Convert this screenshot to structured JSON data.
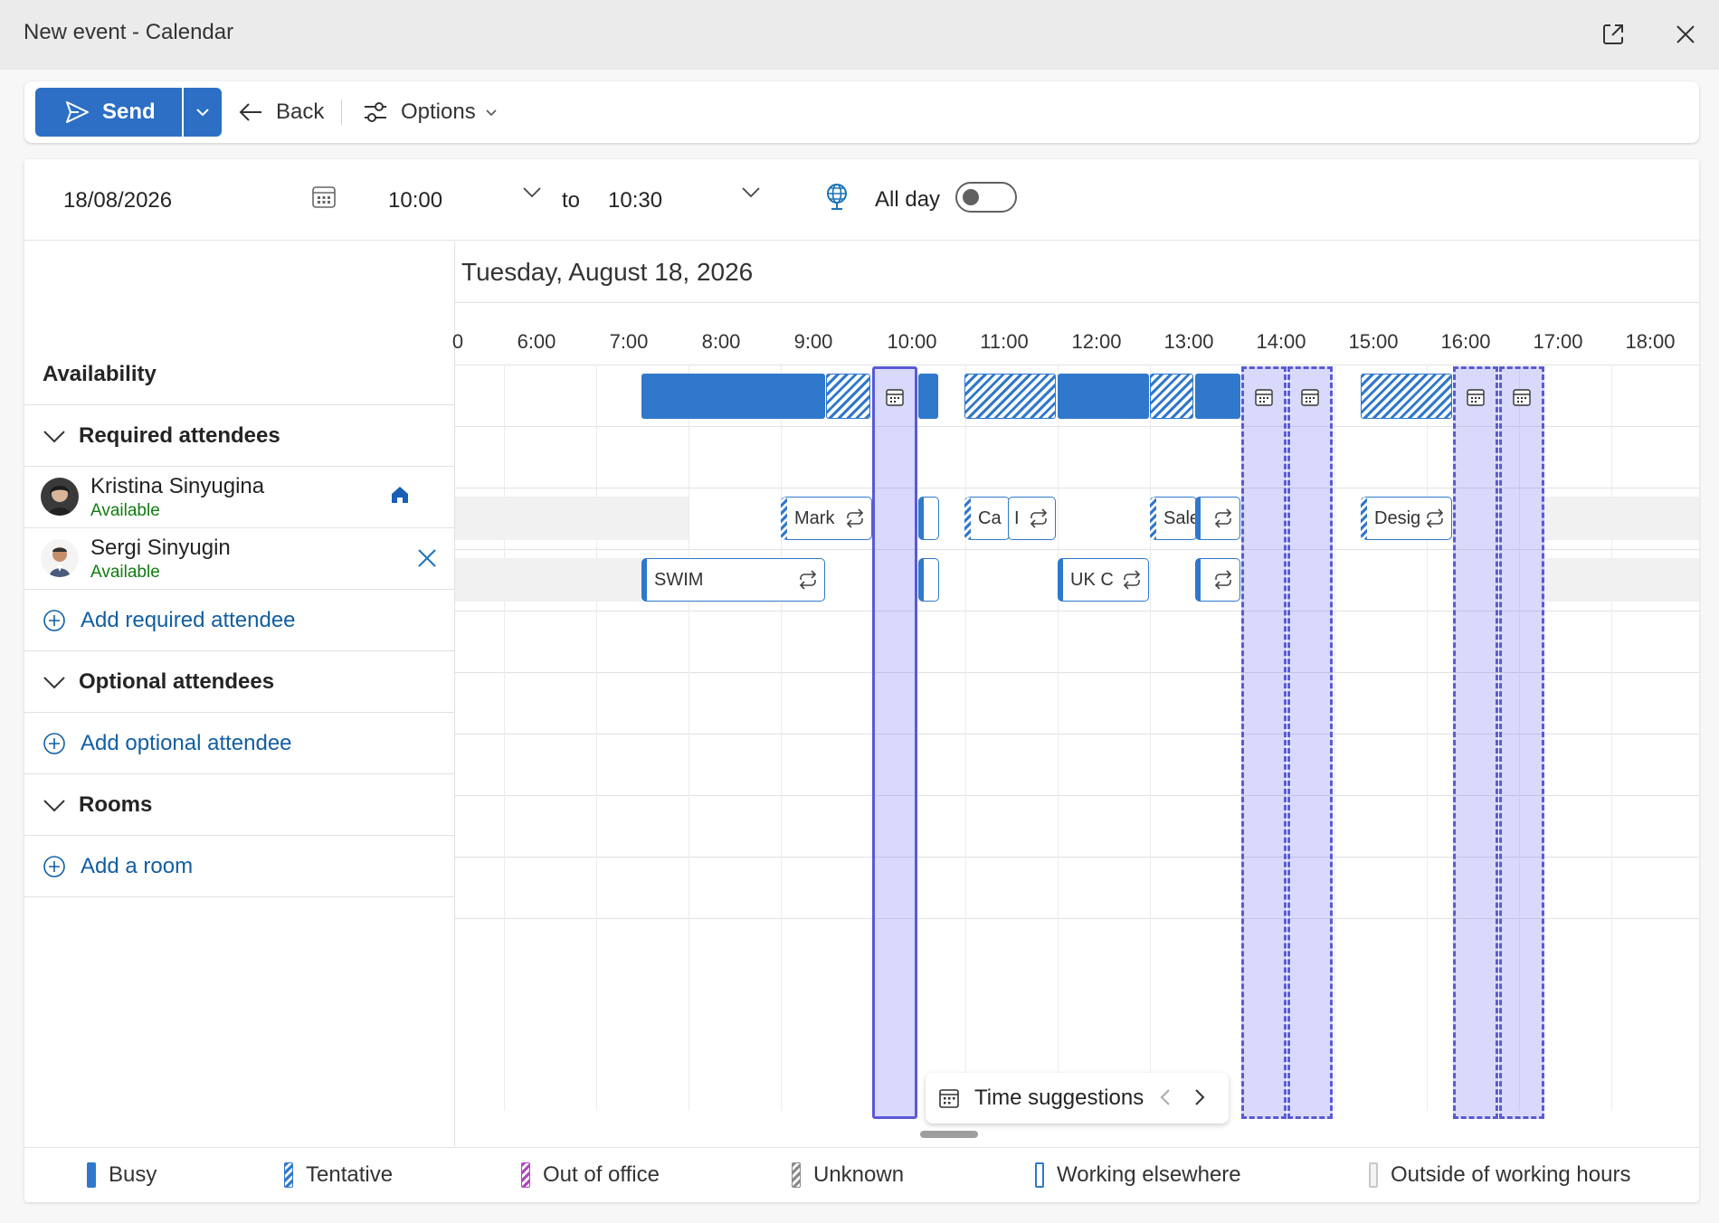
{
  "window": {
    "title": "New event - Calendar"
  },
  "toolbar": {
    "send_label": "Send",
    "back_label": "Back",
    "options_label": "Options"
  },
  "date_row": {
    "date": "18/08/2026",
    "start_time": "10:00",
    "to_label": "to",
    "end_time": "10:30",
    "all_day_label": "All day",
    "all_day_on": false
  },
  "left_panel": {
    "availability_label": "Availability",
    "required_header": "Required attendees",
    "attendees": [
      {
        "name": "Kristina Sinyugina",
        "status": "Available",
        "icon": "home-icon"
      },
      {
        "name": "Sergi Sinyugin",
        "status": "Available",
        "icon": "remove-icon"
      }
    ],
    "add_required": "Add required attendee",
    "optional_header": "Optional attendees",
    "add_optional": "Add optional attendee",
    "rooms_header": "Rooms",
    "add_room": "Add a room"
  },
  "grid": {
    "date_header": "Tuesday, August 18, 2026",
    "hours": [
      "0",
      "6:00",
      "7:00",
      "8:00",
      "9:00",
      "10:00",
      "11:00",
      "12:00",
      "13:00",
      "14:00",
      "15:00",
      "16:00",
      "17:00",
      "18:00"
    ],
    "events": {
      "kristina": [
        {
          "label": "Mark",
          "status": "tentative",
          "recurring": true
        },
        {
          "label": "",
          "status": "busy",
          "recurring": false
        },
        {
          "label": "Ca",
          "status": "tentative",
          "recurring": false
        },
        {
          "label": "I",
          "status": "busy",
          "recurring": true
        },
        {
          "label": "Sale",
          "status": "tentative",
          "recurring": false
        },
        {
          "label": "",
          "status": "busy",
          "recurring": true
        },
        {
          "label": "Desig",
          "status": "tentative",
          "recurring": true
        }
      ],
      "sergi": [
        {
          "label": "SWIM",
          "status": "busy",
          "recurring": true
        },
        {
          "label": "",
          "status": "busy",
          "recurring": false
        },
        {
          "label": "UK C",
          "status": "busy",
          "recurring": true
        },
        {
          "label": "",
          "status": "busy",
          "recurring": true
        }
      ]
    }
  },
  "suggestions": {
    "label": "Time suggestions"
  },
  "legend": [
    {
      "label": "Busy",
      "color": "#2f78cc"
    },
    {
      "label": "Tentative",
      "color": "#2f78cc"
    },
    {
      "label": "Out of office",
      "color": "#b146c2"
    },
    {
      "label": "Unknown",
      "color": "#8a8a8a"
    },
    {
      "label": "Working elsewhere",
      "color": "#2f78cc"
    },
    {
      "label": "Outside of working hours",
      "color": "#c8c8c8"
    }
  ]
}
